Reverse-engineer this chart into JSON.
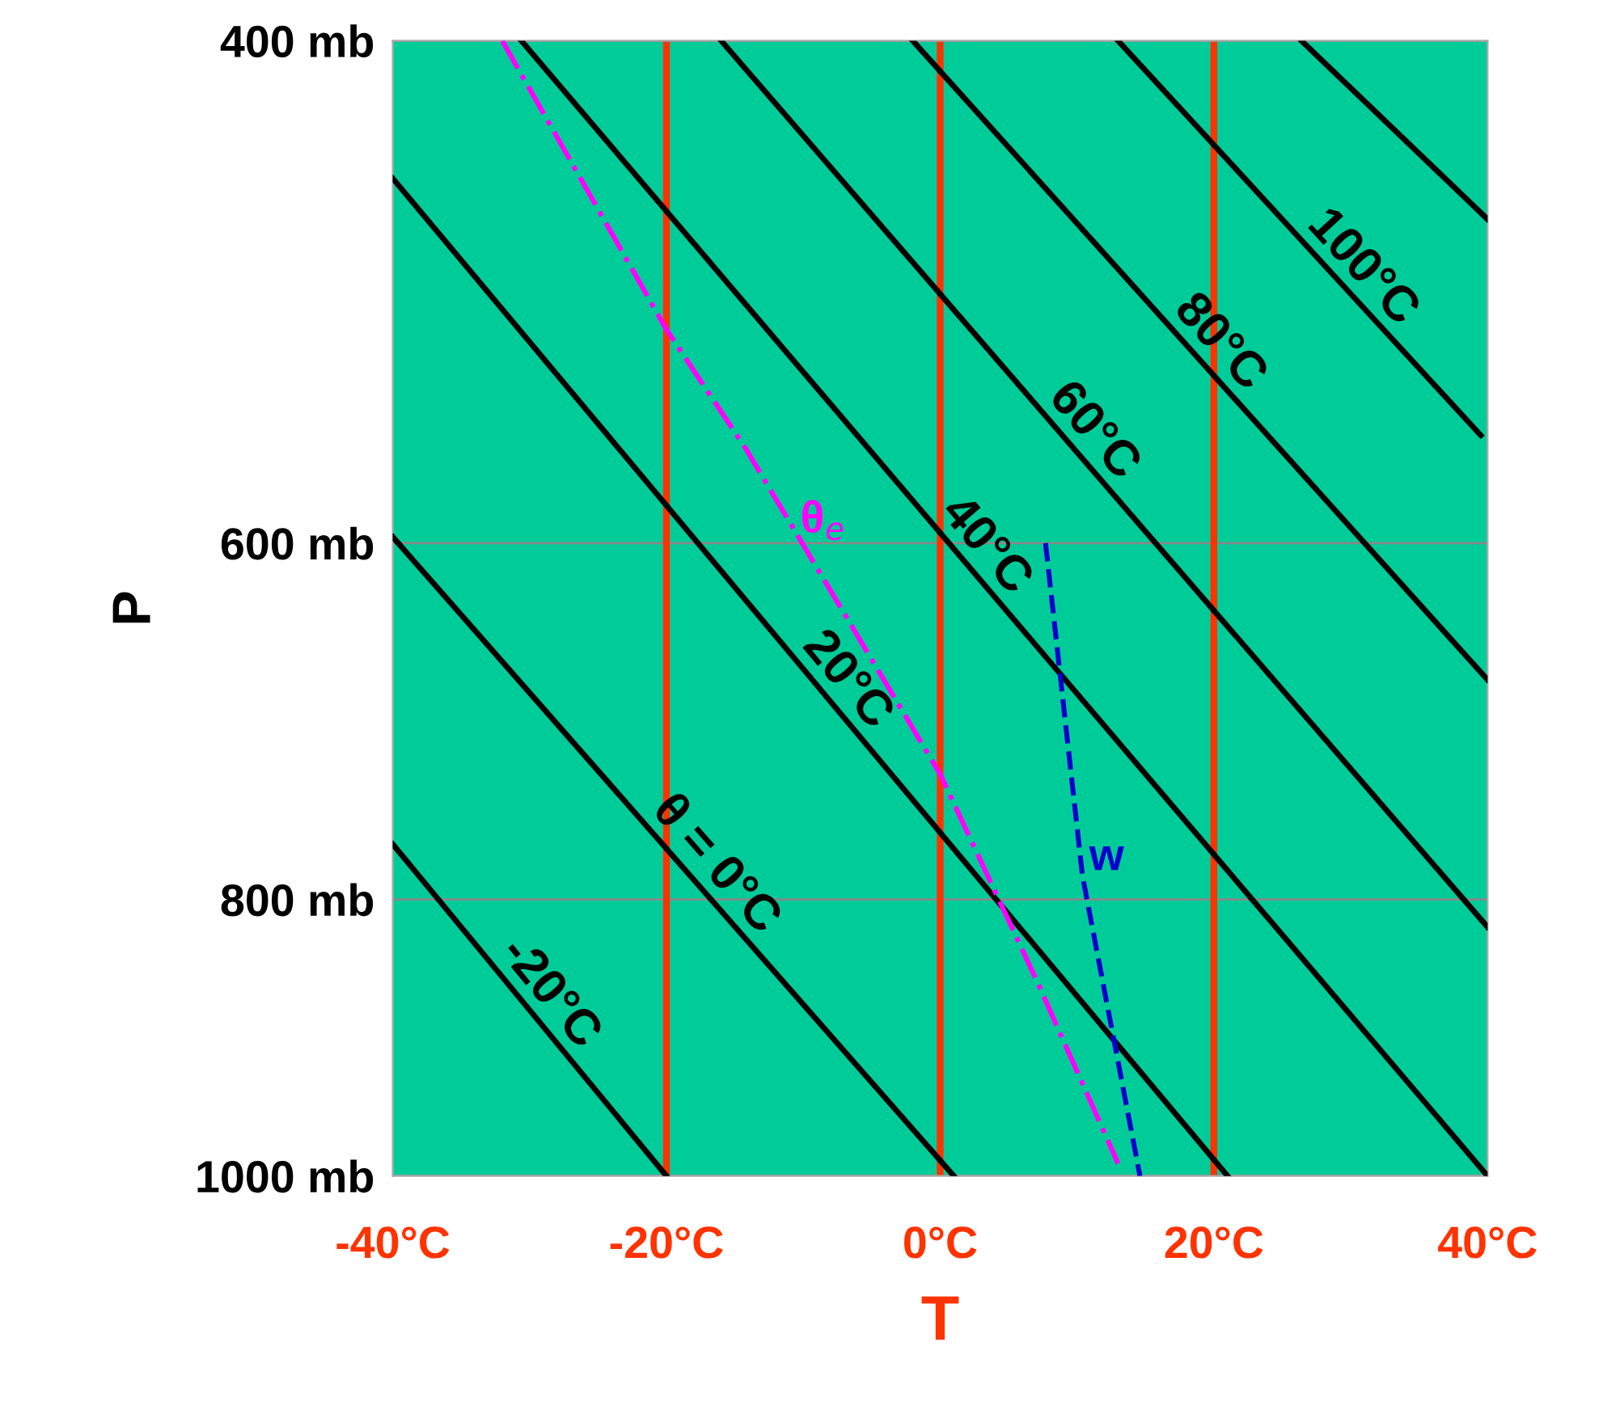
{
  "chart_data": {
    "type": "line",
    "xlabel": "T",
    "ylabel": "P",
    "log": "y",
    "xlim": [
      -40,
      40
    ],
    "ylim": [
      1000,
      400
    ],
    "xticks": [
      {
        "value": -40,
        "label": "-40°C"
      },
      {
        "value": -20,
        "label": "-20°C"
      },
      {
        "value": 0,
        "label": "0°C"
      },
      {
        "value": 20,
        "label": "20°C"
      },
      {
        "value": 40,
        "label": "40°C"
      }
    ],
    "yticks": [
      {
        "value": 400,
        "label": "400 mb"
      },
      {
        "value": 600,
        "label": "600 mb"
      },
      {
        "value": 800,
        "label": "800 mb"
      },
      {
        "value": 1000,
        "label": "1000 mb"
      }
    ],
    "grid": "y",
    "marker": "none",
    "ref_lines": [
      {
        "axis": "x",
        "value": -20,
        "color": "#ff3300"
      },
      {
        "axis": "x",
        "value": 0,
        "color": "#ff3300"
      },
      {
        "axis": "x",
        "value": 20,
        "color": "#ff3300"
      }
    ],
    "series": [
      {
        "name": "-20°C",
        "color": "#000000",
        "x": [
          -40,
          -20
        ],
        "values": [
          765,
          1000
        ],
        "line_style": "solid"
      },
      {
        "name": "θ = 0°C",
        "color": "#000000",
        "x": [
          -40,
          1
        ],
        "values": [
          597,
          1000
        ],
        "line_style": "solid"
      },
      {
        "name": "20°C",
        "color": "#000000",
        "x": [
          -40,
          21
        ],
        "values": [
          447,
          1000
        ],
        "line_style": "solid"
      },
      {
        "name": "40°C",
        "color": "#000000",
        "x": [
          -30.6,
          40
        ],
        "values": [
          400,
          1000
        ],
        "line_style": "solid"
      },
      {
        "name": "60°C",
        "color": "#000000",
        "x": [
          -16,
          40
        ],
        "values": [
          400,
          818
        ],
        "line_style": "solid"
      },
      {
        "name": "80°C",
        "color": "#000000",
        "x": [
          -2,
          40
        ],
        "values": [
          400,
          670
        ],
        "line_style": "solid"
      },
      {
        "name": "100°C",
        "color": "#000000",
        "x": [
          13,
          39.5
        ],
        "values": [
          400,
          550
        ],
        "line_style": "solid"
      },
      {
        "color": "#000000",
        "x": [
          26.4,
          40
        ],
        "values": [
          400,
          462
        ],
        "line_style": "solid"
      },
      {
        "name": "θ$_{e}$",
        "color": "#ff00ff",
        "x": [
          -32,
          -20,
          -14.2,
          0,
          7,
          13
        ],
        "values": [
          400,
          505,
          556,
          723,
          853,
          990
        ],
        "line_style": "dashdot"
      },
      {
        "name": "w",
        "color": "#0000cc",
        "x": [
          7.7,
          10.4,
          14.6
        ],
        "values": [
          600,
          785,
          1000
        ],
        "line_style": "dashed"
      }
    ]
  }
}
